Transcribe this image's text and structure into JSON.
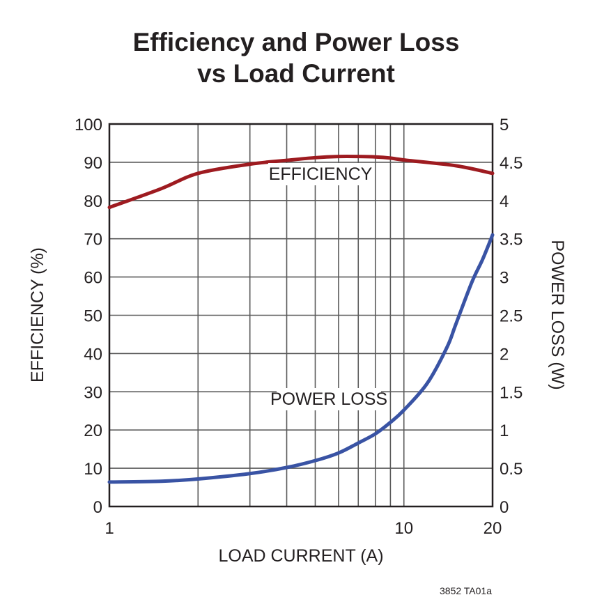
{
  "chart_data": {
    "type": "line",
    "title": [
      "Efficiency and Power Loss",
      "vs Load Current"
    ],
    "xlabel": "LOAD CURRENT (A)",
    "ylabel": "EFFICIENCY (%)",
    "y2label": "POWER LOSS (W)",
    "xscale": "log",
    "xlim": [
      1,
      20
    ],
    "ylim": [
      0,
      100
    ],
    "y2lim": [
      0,
      5
    ],
    "grid": true,
    "x_gridlines": [
      1,
      2,
      3,
      4,
      5,
      6,
      7,
      8,
      9,
      10,
      20
    ],
    "x_ticks": [
      {
        "value": 1,
        "label": "1"
      },
      {
        "value": 10,
        "label": "10"
      },
      {
        "value": 20,
        "label": "20"
      }
    ],
    "y_ticks": [
      "0",
      "10",
      "20",
      "30",
      "40",
      "50",
      "60",
      "70",
      "80",
      "90",
      "100"
    ],
    "y2_ticks": [
      "0",
      "0.5",
      "1",
      "1.5",
      "2",
      "2.5",
      "3",
      "3.5",
      "4",
      "4.5",
      "5"
    ],
    "series": [
      {
        "name": "EFFICIENCY",
        "axis": "left",
        "color": "#9e1b20",
        "x": [
          1,
          1.5,
          2,
          3,
          4,
          5,
          6,
          7,
          8,
          9,
          10,
          15,
          20
        ],
        "y": [
          78.2,
          83.1,
          87.1,
          89.5,
          90.5,
          91.2,
          91.5,
          91.5,
          91.4,
          91.1,
          90.6,
          89.1,
          87.1
        ]
      },
      {
        "name": "POWER LOSS",
        "axis": "right",
        "color": "#3953a4",
        "x": [
          1,
          1.5,
          2,
          3,
          4,
          5,
          6,
          7,
          8,
          9,
          10,
          12,
          14,
          15,
          17,
          18.5,
          20
        ],
        "y": [
          0.32,
          0.33,
          0.36,
          0.43,
          0.51,
          0.6,
          0.7,
          0.83,
          0.95,
          1.1,
          1.26,
          1.61,
          2.08,
          2.38,
          2.93,
          3.23,
          3.55
        ]
      }
    ],
    "footnote": "3852 TA01a"
  }
}
